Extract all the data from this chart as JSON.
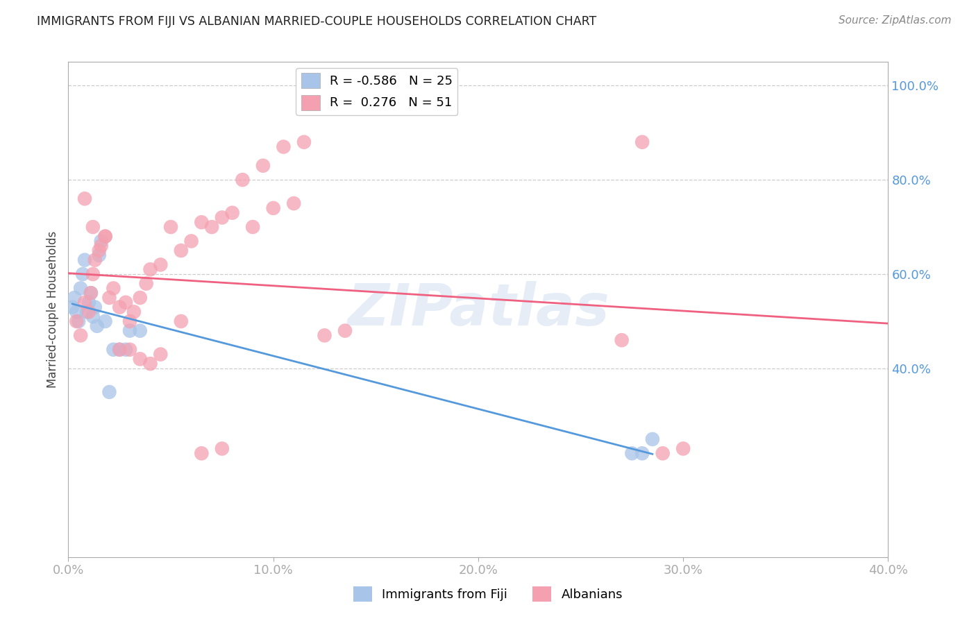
{
  "title": "IMMIGRANTS FROM FIJI VS ALBANIAN MARRIED-COUPLE HOUSEHOLDS CORRELATION CHART",
  "source": "Source: ZipAtlas.com",
  "ylabel": "Married-couple Households",
  "legend_fiji_r": "-0.586",
  "legend_fiji_n": "25",
  "legend_albanian_r": "0.276",
  "legend_albanian_n": "51",
  "fiji_color": "#a8c4e8",
  "albanian_color": "#f4a0b0",
  "fiji_line_color": "#5599dd",
  "albanian_line_color": "#f06080",
  "watermark": "ZIPatlas",
  "xlim": [
    0.0,
    0.4
  ],
  "ylim": [
    0.0,
    1.05
  ],
  "yticks": [
    0.4,
    0.6,
    0.8,
    1.0
  ],
  "xticks": [
    0.0,
    0.1,
    0.2,
    0.3,
    0.4
  ],
  "fiji_points_x": [
    0.002,
    0.003,
    0.004,
    0.005,
    0.006,
    0.007,
    0.008,
    0.009,
    0.01,
    0.011,
    0.012,
    0.013,
    0.014,
    0.015,
    0.016,
    0.018,
    0.02,
    0.022,
    0.025,
    0.028,
    0.03,
    0.035,
    0.275,
    0.28,
    0.285
  ],
  "fiji_points_y": [
    0.53,
    0.55,
    0.52,
    0.5,
    0.57,
    0.6,
    0.63,
    0.52,
    0.54,
    0.56,
    0.51,
    0.53,
    0.49,
    0.64,
    0.67,
    0.5,
    0.35,
    0.44,
    0.44,
    0.44,
    0.48,
    0.48,
    0.22,
    0.22,
    0.25
  ],
  "albanian_points_x": [
    0.004,
    0.006,
    0.008,
    0.01,
    0.011,
    0.012,
    0.013,
    0.015,
    0.016,
    0.018,
    0.02,
    0.022,
    0.025,
    0.028,
    0.03,
    0.032,
    0.035,
    0.038,
    0.04,
    0.045,
    0.05,
    0.055,
    0.06,
    0.065,
    0.07,
    0.075,
    0.08,
    0.09,
    0.1,
    0.11,
    0.008,
    0.012,
    0.018,
    0.025,
    0.03,
    0.035,
    0.04,
    0.045,
    0.055,
    0.065,
    0.075,
    0.085,
    0.095,
    0.105,
    0.115,
    0.125,
    0.135,
    0.27,
    0.28,
    0.29,
    0.3
  ],
  "albanian_points_y": [
    0.5,
    0.47,
    0.54,
    0.52,
    0.56,
    0.6,
    0.63,
    0.65,
    0.66,
    0.68,
    0.55,
    0.57,
    0.53,
    0.54,
    0.5,
    0.52,
    0.55,
    0.58,
    0.61,
    0.62,
    0.7,
    0.65,
    0.67,
    0.71,
    0.7,
    0.72,
    0.73,
    0.7,
    0.74,
    0.75,
    0.76,
    0.7,
    0.68,
    0.44,
    0.44,
    0.42,
    0.41,
    0.43,
    0.5,
    0.22,
    0.23,
    0.8,
    0.83,
    0.87,
    0.88,
    0.47,
    0.48,
    0.46,
    0.88,
    0.22,
    0.23
  ]
}
